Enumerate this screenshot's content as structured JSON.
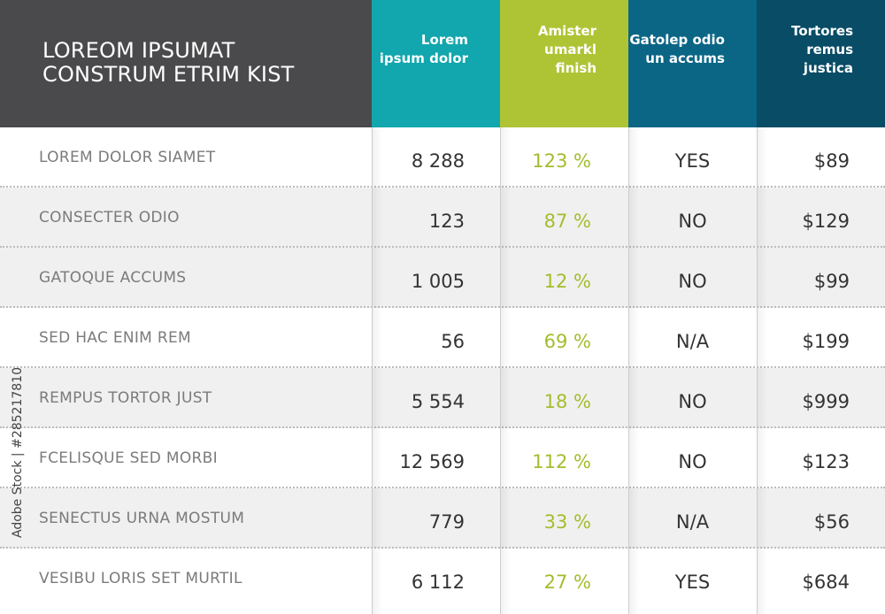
{
  "title": "LOREOM IPSUMAT CONSTRUM ETRIM KIST",
  "columns": [
    {
      "label": "Lorem ipsum dolor",
      "color": "#12a6ae"
    },
    {
      "label": "Amister umarkl finish",
      "color": "#afc435"
    },
    {
      "label": "Gatolep odio un accums",
      "color": "#0b6685"
    },
    {
      "label": "Tortores remus justica",
      "color": "#084c66"
    }
  ],
  "rows": [
    {
      "label": "LOREM DOLOR SIAMET",
      "values": [
        "8 288",
        "123 %",
        "YES",
        "$89"
      ]
    },
    {
      "label": "CONSECTER ODIO",
      "values": [
        "123",
        "87 %",
        "NO",
        "$129"
      ]
    },
    {
      "label": "GATOQUE ACCUMS",
      "values": [
        "1 005",
        "12 %",
        "NO",
        "$99"
      ]
    },
    {
      "label": "SED HAC ENIM REM",
      "values": [
        "56",
        "69 %",
        "N/A",
        "$199"
      ]
    },
    {
      "label": "REMPUS TORTOR JUST",
      "values": [
        "5 554",
        "18 %",
        "NO",
        "$999"
      ]
    },
    {
      "label": "FCELISQUE SED MORBI",
      "values": [
        "12 569",
        "112 %",
        "NO",
        "$123"
      ]
    },
    {
      "label": "SENECTUS URNA MOSTUM",
      "values": [
        "779",
        "33 %",
        "N/A",
        "$56"
      ]
    },
    {
      "label": "VESIBU LORIS SET MURTIL",
      "values": [
        "6 112",
        "27 %",
        "YES",
        "$684"
      ]
    }
  ],
  "watermark": "Adobe Stock | #285217810",
  "colors": {
    "title_bg": "#4a4a4c",
    "percent_text": "#a3bd2c",
    "alt_row": "#f0f0f0"
  }
}
